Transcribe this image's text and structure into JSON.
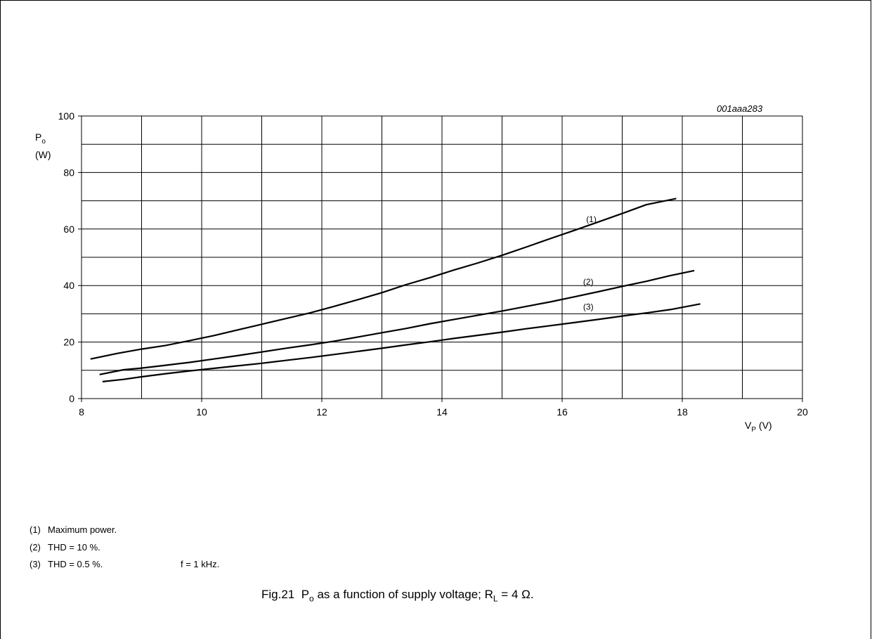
{
  "figure_code": "001aaa283",
  "caption": {
    "prefix": "Fig.21",
    "text_a": "P",
    "sub_o": "o",
    "text_b": " as a function of supply voltage; R",
    "sub_l": "L",
    "text_c": " = 4 Ω."
  },
  "y_axis": {
    "symbol": "P",
    "sub": "o",
    "unit": "(W)"
  },
  "x_axis": {
    "symbol": "V",
    "sub": "P",
    "unit": "(V)"
  },
  "legend": [
    {
      "num": "(1)",
      "text": "Maximum power."
    },
    {
      "num": "(2)",
      "text": "THD = 10 %."
    },
    {
      "num": "(3)",
      "text": "THD = 0.5 %."
    }
  ],
  "conditions": "f = 1 kHz.",
  "chart_data": {
    "type": "line",
    "xlim": [
      8,
      20
    ],
    "ylim": [
      0,
      100
    ],
    "x_ticks": [
      8,
      10,
      12,
      14,
      16,
      18,
      20
    ],
    "y_ticks": [
      0,
      20,
      40,
      60,
      80,
      100
    ],
    "x_minor_step": 1,
    "y_minor_step": 10,
    "grid": true,
    "series": [
      {
        "label": "(1)",
        "label_at": [
          16.4,
          62.5
        ],
        "x": [
          8.15,
          8.6,
          9.0,
          9.4,
          9.8,
          10.2,
          10.6,
          11.0,
          11.4,
          11.8,
          12.2,
          12.6,
          13.0,
          13.4,
          13.8,
          14.2,
          14.6,
          15.0,
          15.4,
          15.8,
          16.2,
          16.6,
          17.0,
          17.4,
          17.9
        ],
        "values": [
          14.0,
          16.0,
          17.5,
          18.8,
          20.5,
          22.3,
          24.3,
          26.3,
          28.3,
          30.3,
          32.6,
          35.0,
          37.5,
          40.3,
          42.8,
          45.5,
          48.0,
          50.7,
          53.6,
          56.6,
          59.5,
          62.5,
          65.5,
          68.6,
          70.8
        ]
      },
      {
        "label": "(2)",
        "label_at": [
          16.35,
          40.3
        ],
        "x": [
          8.3,
          8.7,
          9.0,
          9.4,
          9.8,
          10.2,
          10.6,
          11.0,
          11.4,
          11.8,
          12.2,
          12.6,
          13.0,
          13.4,
          13.8,
          14.2,
          14.6,
          15.0,
          15.4,
          15.8,
          16.2,
          16.6,
          17.0,
          17.4,
          17.8,
          18.2
        ],
        "values": [
          8.5,
          10.2,
          10.8,
          11.8,
          12.8,
          14.0,
          15.2,
          16.5,
          17.8,
          19.0,
          20.3,
          21.8,
          23.3,
          24.8,
          26.5,
          28.0,
          29.5,
          31.0,
          32.6,
          34.2,
          36.0,
          37.8,
          39.7,
          41.5,
          43.5,
          45.3
        ]
      },
      {
        "label": "(3)",
        "label_at": [
          16.35,
          31.5
        ],
        "x": [
          8.35,
          8.7,
          9.0,
          9.4,
          9.8,
          10.2,
          10.6,
          11.0,
          11.4,
          11.8,
          12.2,
          12.6,
          13.0,
          13.4,
          13.8,
          14.2,
          14.6,
          15.0,
          15.4,
          15.8,
          16.2,
          16.6,
          17.0,
          17.4,
          17.8,
          18.3
        ],
        "values": [
          6.0,
          6.8,
          7.7,
          8.8,
          9.8,
          10.7,
          11.6,
          12.5,
          13.5,
          14.5,
          15.6,
          16.7,
          17.8,
          19.0,
          20.1,
          21.3,
          22.4,
          23.5,
          24.7,
          25.8,
          26.9,
          28.0,
          29.2,
          30.3,
          31.5,
          33.5
        ]
      }
    ]
  }
}
